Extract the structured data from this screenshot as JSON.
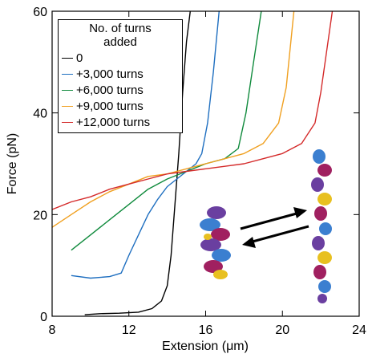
{
  "chart_data": {
    "type": "line",
    "xlabel": "Extension (μm)",
    "ylabel": "Force (pN)",
    "xlim": [
      8,
      24
    ],
    "xticks": [
      8,
      12,
      16,
      20,
      24
    ],
    "ylim": [
      0,
      60
    ],
    "yticks": [
      0,
      20,
      40,
      60
    ],
    "legend_title": "No. of turns added",
    "legend": "upper left",
    "series": [
      {
        "name": "0",
        "color": "#000000",
        "x": [
          9.7,
          10.5,
          11.5,
          12.5,
          13.2,
          13.7,
          14.0,
          14.2,
          14.4,
          14.6,
          14.8,
          15.0,
          15.2
        ],
        "values": [
          0.3,
          0.5,
          0.6,
          0.8,
          1.5,
          3,
          6,
          12,
          22,
          32,
          44,
          54,
          60
        ]
      },
      {
        "name": "+3,000 turns",
        "color": "#1f6fc0",
        "x": [
          9,
          10,
          11,
          11.6,
          12,
          12.5,
          13,
          13.5,
          14,
          14.5,
          15,
          15.5,
          15.8,
          16.1,
          16.4,
          16.7
        ],
        "values": [
          8,
          7.5,
          7.8,
          8.5,
          12,
          16,
          20,
          23,
          25.5,
          27,
          28.5,
          30,
          32,
          38,
          48,
          60
        ]
      },
      {
        "name": "+6,000 turns",
        "color": "#0f8a3c",
        "x": [
          9,
          10,
          11,
          12,
          13,
          14,
          15,
          16,
          17,
          17.7,
          18.1,
          18.5,
          18.9
        ],
        "values": [
          13,
          16,
          19,
          22,
          25,
          27,
          28.5,
          30,
          31,
          33,
          40,
          50,
          60
        ]
      },
      {
        "name": "+9,000 turns",
        "color": "#f0a020",
        "x": [
          8,
          9,
          10,
          11,
          12,
          13,
          14,
          15,
          16,
          17,
          18,
          19,
          19.8,
          20.2,
          20.6
        ],
        "values": [
          17.5,
          20,
          22.5,
          24.5,
          26,
          27.5,
          28,
          29,
          30,
          31,
          32,
          34,
          38,
          45,
          60
        ]
      },
      {
        "name": "+12,000 turns",
        "color": "#d42a2a",
        "x": [
          8,
          9,
          10,
          11,
          12,
          13,
          14,
          15,
          16,
          17,
          18,
          19,
          20,
          21,
          21.7,
          22,
          22.3,
          22.6
        ],
        "values": [
          21,
          22.5,
          23.5,
          25,
          26,
          27,
          28,
          28.5,
          29,
          29.5,
          30,
          31,
          32,
          34,
          38,
          44,
          52,
          60
        ]
      }
    ]
  }
}
